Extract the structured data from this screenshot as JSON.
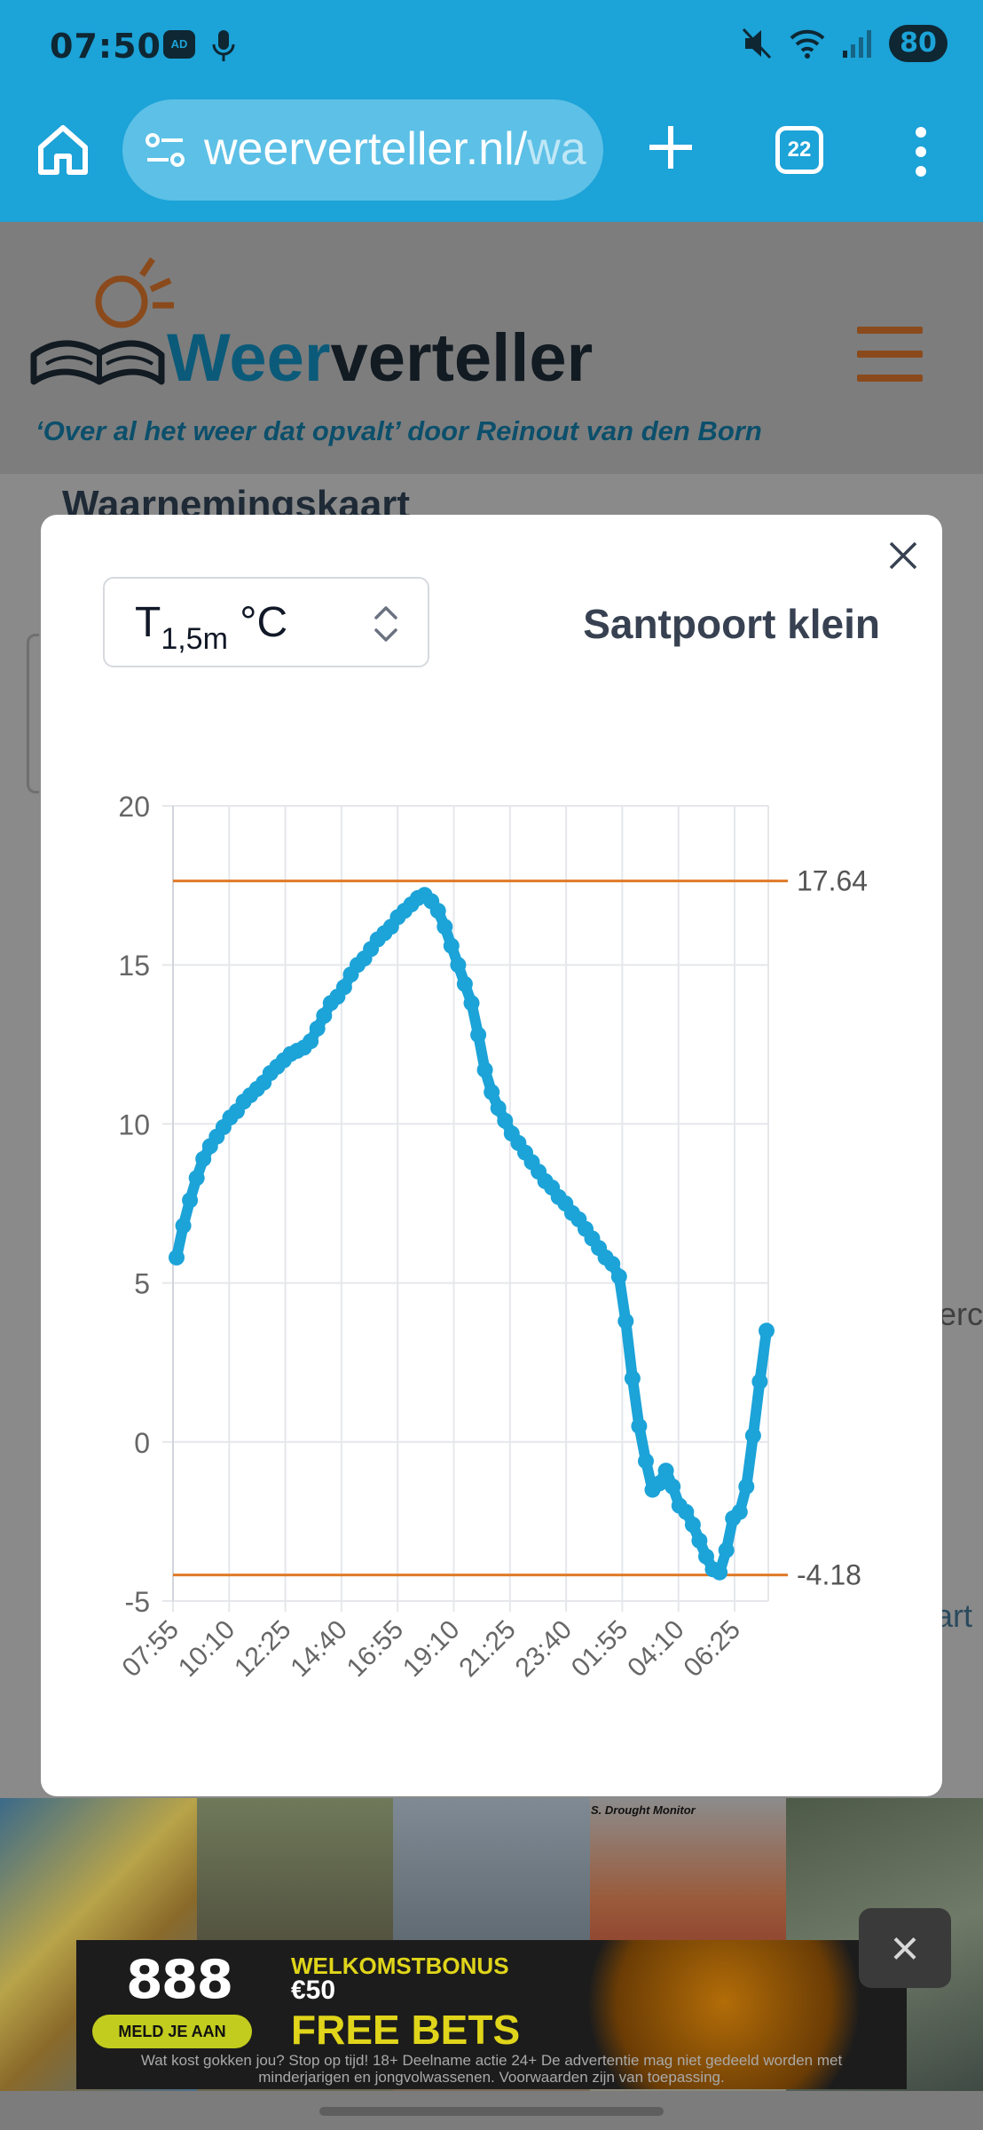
{
  "status": {
    "time": "07:50",
    "badge": "AD",
    "battery": "80",
    "icons": [
      "mic-icon",
      "mute-icon",
      "wifi-icon",
      "signal-icon"
    ]
  },
  "browser": {
    "url_main": "weerverteller.nl/",
    "url_faded": "wa",
    "tab_count": "22"
  },
  "site": {
    "logo_dark": "verteller",
    "logo_accent": "Weer",
    "tagline": "‘Over al het weer dat opvalt’ door Reinout van den Born",
    "title": "Waarnemingskaart",
    "side_text_1": "erc",
    "side_text_2": "art"
  },
  "modal": {
    "unit_prefix": "T",
    "unit_sub": "1,5m",
    "unit_suffix": " °C",
    "station": "Santpoort klein"
  },
  "chart_data": {
    "type": "line",
    "ylim": [
      -5,
      20
    ],
    "yticks": [
      "20",
      "15",
      "10",
      "5",
      "0",
      "-5"
    ],
    "xticks": [
      "07:55",
      "10:10",
      "12:25",
      "14:40",
      "16:55",
      "19:10",
      "21:25",
      "23:40",
      "01:55",
      "04:10",
      "06:25"
    ],
    "max_line": 17.64,
    "max_label": "17.64",
    "min_line": -4.18,
    "min_label": "-4.18",
    "series_color": "#1ca3d8",
    "line_color": "#e07a28",
    "values": [
      5.8,
      6.8,
      7.6,
      8.3,
      8.9,
      9.3,
      9.6,
      9.9,
      10.2,
      10.4,
      10.7,
      10.9,
      11.1,
      11.3,
      11.6,
      11.8,
      12.0,
      12.2,
      12.3,
      12.4,
      12.6,
      13.0,
      13.4,
      13.8,
      14.0,
      14.3,
      14.7,
      15.0,
      15.2,
      15.5,
      15.8,
      16.0,
      16.2,
      16.5,
      16.7,
      16.9,
      17.1,
      17.2,
      17.0,
      16.7,
      16.2,
      15.6,
      15.0,
      14.4,
      13.8,
      12.8,
      11.7,
      11.0,
      10.5,
      10.1,
      9.7,
      9.4,
      9.1,
      8.8,
      8.5,
      8.2,
      8.0,
      7.7,
      7.5,
      7.2,
      7.0,
      6.7,
      6.4,
      6.1,
      5.8,
      5.6,
      5.2,
      3.8,
      2.0,
      0.5,
      -0.6,
      -1.5,
      -1.3,
      -0.9,
      -1.4,
      -2.0,
      -2.2,
      -2.6,
      -3.1,
      -3.6,
      -4.0,
      -4.1,
      -3.4,
      -2.4,
      -2.2,
      -1.4,
      0.2,
      1.9,
      3.5
    ]
  },
  "ad": {
    "brand": "888",
    "cta": "MELD JE AAN",
    "bonus": "WELKOMSTBONUS",
    "amount": "€50",
    "headline": "FREE BETS",
    "disclaimer": "Wat kost gokken jou? Stop op tijd! 18+ Deelname actie 24+ De advertentie mag niet gedeeld worden met minderjarigen en jongvolwassenen. Voorwaarden zijn van toepassing.",
    "thumb_label": "S. Drought Monitor"
  }
}
